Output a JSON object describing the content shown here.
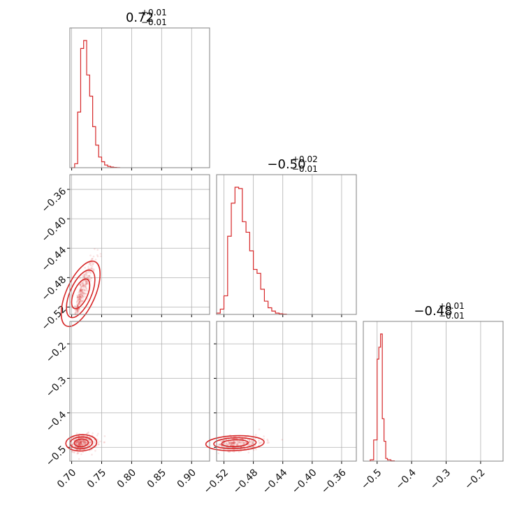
{
  "colors": {
    "series": "#d62728",
    "grid": "#b0b0b0",
    "frame": "#808080"
  },
  "chart_data": {
    "type": "corner",
    "parameters": [
      {
        "title_value": "0.72",
        "title_plus": "+0.01",
        "title_minus": "−0.01"
      },
      {
        "title_value": "−0.50",
        "title_plus": "+0.02",
        "title_minus": "−0.01"
      },
      {
        "title_value": "−0.48",
        "title_plus": "+0.01",
        "title_minus": "−0.01"
      }
    ],
    "axes": {
      "p1": {
        "range": [
          0.697,
          0.93
        ],
        "ticks": [
          0.7,
          0.75,
          0.8,
          0.85,
          0.9
        ],
        "tick_labels": [
          "0.70",
          "0.75",
          "0.80",
          "0.85",
          "0.90"
        ]
      },
      "p2": {
        "range": [
          -0.53,
          -0.34
        ],
        "ticks": [
          -0.52,
          -0.48,
          -0.44,
          -0.4,
          -0.36
        ],
        "tick_labels": [
          "−0.52",
          "−0.48",
          "−0.44",
          "−0.40",
          "−0.36"
        ]
      },
      "p3": {
        "range": [
          -0.54,
          -0.135
        ],
        "ticks": [
          -0.5,
          -0.4,
          -0.3,
          -0.2
        ],
        "tick_labels": [
          "−0.5",
          "−0.4",
          "−0.3",
          "−0.2"
        ]
      }
    },
    "histograms": {
      "p1": {
        "edges": [
          0.7,
          0.705,
          0.71,
          0.715,
          0.72,
          0.725,
          0.73,
          0.735,
          0.74,
          0.745,
          0.75,
          0.755,
          0.76,
          0.765,
          0.77,
          0.775,
          0.78
        ],
        "counts": [
          0,
          0.03,
          0.42,
          0.9,
          0.96,
          0.7,
          0.54,
          0.31,
          0.17,
          0.08,
          0.045,
          0.02,
          0.01,
          0.005,
          0.002,
          0.001
        ]
      },
      "p2": {
        "edges": [
          -0.53,
          -0.525,
          -0.52,
          -0.515,
          -0.51,
          -0.505,
          -0.5,
          -0.495,
          -0.49,
          -0.485,
          -0.48,
          -0.475,
          -0.47,
          -0.465,
          -0.46,
          -0.455,
          -0.45,
          -0.445,
          -0.44,
          -0.435
        ],
        "counts": [
          0.01,
          0.04,
          0.14,
          0.59,
          0.84,
          0.96,
          0.95,
          0.7,
          0.62,
          0.48,
          0.34,
          0.31,
          0.19,
          0.1,
          0.05,
          0.025,
          0.01,
          0.005,
          0.002
        ]
      },
      "p3": {
        "edges": [
          -0.52,
          -0.51,
          -0.5,
          -0.495,
          -0.49,
          -0.485,
          -0.48,
          -0.475,
          -0.47,
          -0.46,
          -0.45
        ],
        "counts": [
          0.01,
          0.16,
          0.77,
          0.86,
          0.96,
          0.32,
          0.15,
          0.02,
          0.01,
          0.002
        ]
      }
    },
    "scatter_2d": {
      "p1_p2": {
        "center": [
          0.715,
          -0.502
        ],
        "spread": [
          0.012,
          0.024
        ],
        "corr": 0.92
      },
      "p1_p3": {
        "center": [
          0.716,
          -0.487
        ],
        "spread": [
          0.013,
          0.012
        ],
        "corr": 0.1
      },
      "p2_p3": {
        "center": [
          -0.505,
          -0.488
        ],
        "spread": [
          0.02,
          0.011
        ],
        "corr": 0.15
      }
    }
  }
}
